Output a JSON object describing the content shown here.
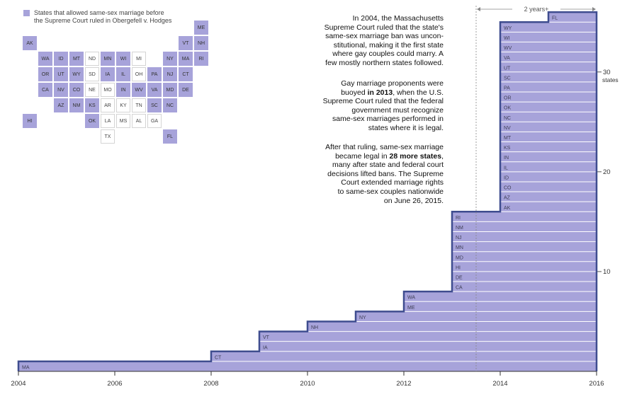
{
  "legend": {
    "line1": "States that allowed same-sex marriage before",
    "line2": "the Supreme Court ruled in Obergefell v. Hodges"
  },
  "colors": {
    "fill": "#a7a3da",
    "line": "#3f4d8f",
    "divider": "#ffffff",
    "text": "#222222"
  },
  "map": {
    "rows": [
      [
        {
          "s": "ME",
          "c": 11,
          "y": 1
        }
      ],
      [
        {
          "s": "AK",
          "c": 0,
          "y": 1
        },
        {
          "s": "VT",
          "c": 10,
          "y": 1
        },
        {
          "s": "NH",
          "c": 11,
          "y": 1
        }
      ],
      [
        {
          "s": "WA",
          "c": 1,
          "y": 1
        },
        {
          "s": "ID",
          "c": 2,
          "y": 1
        },
        {
          "s": "MT",
          "c": 3,
          "y": 1
        },
        {
          "s": "ND",
          "c": 4,
          "y": 0
        },
        {
          "s": "MN",
          "c": 5,
          "y": 1
        },
        {
          "s": "WI",
          "c": 6,
          "y": 1
        },
        {
          "s": "MI",
          "c": 7,
          "y": 0
        },
        {
          "s": "NY",
          "c": 9,
          "y": 1
        },
        {
          "s": "MA",
          "c": 10,
          "y": 1
        },
        {
          "s": "RI",
          "c": 11,
          "y": 1
        }
      ],
      [
        {
          "s": "OR",
          "c": 1,
          "y": 1
        },
        {
          "s": "UT",
          "c": 2,
          "y": 1
        },
        {
          "s": "WY",
          "c": 3,
          "y": 1
        },
        {
          "s": "SD",
          "c": 4,
          "y": 0
        },
        {
          "s": "IA",
          "c": 5,
          "y": 1
        },
        {
          "s": "IL",
          "c": 6,
          "y": 1
        },
        {
          "s": "OH",
          "c": 7,
          "y": 0
        },
        {
          "s": "PA",
          "c": 8,
          "y": 1
        },
        {
          "s": "NJ",
          "c": 9,
          "y": 1
        },
        {
          "s": "CT",
          "c": 10,
          "y": 1
        }
      ],
      [
        {
          "s": "CA",
          "c": 1,
          "y": 1
        },
        {
          "s": "NV",
          "c": 2,
          "y": 1
        },
        {
          "s": "CO",
          "c": 3,
          "y": 1
        },
        {
          "s": "NE",
          "c": 4,
          "y": 0
        },
        {
          "s": "MO",
          "c": 5,
          "y": 0
        },
        {
          "s": "IN",
          "c": 6,
          "y": 1
        },
        {
          "s": "WV",
          "c": 7,
          "y": 1
        },
        {
          "s": "VA",
          "c": 8,
          "y": 1
        },
        {
          "s": "MD",
          "c": 9,
          "y": 1
        },
        {
          "s": "DE",
          "c": 10,
          "y": 1
        }
      ],
      [
        {
          "s": "AZ",
          "c": 2,
          "y": 1
        },
        {
          "s": "NM",
          "c": 3,
          "y": 1
        },
        {
          "s": "KS",
          "c": 4,
          "y": 1
        },
        {
          "s": "AR",
          "c": 5,
          "y": 0
        },
        {
          "s": "KY",
          "c": 6,
          "y": 0
        },
        {
          "s": "TN",
          "c": 7,
          "y": 0
        },
        {
          "s": "SC",
          "c": 8,
          "y": 1
        },
        {
          "s": "NC",
          "c": 9,
          "y": 1
        }
      ],
      [
        {
          "s": "HI",
          "c": 0,
          "y": 1
        },
        {
          "s": "OK",
          "c": 4,
          "y": 1
        },
        {
          "s": "LA",
          "c": 5,
          "y": 0
        },
        {
          "s": "MS",
          "c": 6,
          "y": 0
        },
        {
          "s": "AL",
          "c": 7,
          "y": 0
        },
        {
          "s": "GA",
          "c": 8,
          "y": 0
        }
      ],
      [
        {
          "s": "TX",
          "c": 5,
          "y": 0
        },
        {
          "s": "FL",
          "c": 9,
          "y": 1
        }
      ]
    ]
  },
  "annotations": {
    "p1": [
      "In 2004, the Massachusetts",
      "Supreme Court ruled that the state's",
      "same-sex marriage ban was uncon-",
      "stitutional, making it the first state",
      "where gay couples could marry. A",
      "few mostly northern states followed."
    ],
    "p2_pre": [
      "Gay marriage proponents were"
    ],
    "p2_mid_a": "buoyed ",
    "p2_bold": "in 2013",
    "p2_mid_b": ", when the U.S.",
    "p2_post": [
      "Supreme Court ruled that the federal",
      "government must recognize",
      "same-sex marriages performed in",
      "states where it is legal."
    ],
    "p3_pre": [
      "After that ruling, same-sex marriage"
    ],
    "p3_mid_a": "became legal in ",
    "p3_bold": "28 more states",
    "p3_mid_b": ",",
    "p3_post": [
      "many after state and federal court",
      "decisions lifted bans. The Supreme",
      "Court extended marriage rights",
      "to same-sex couples nationwide",
      "on June 26, 2015."
    ]
  },
  "chart_data": {
    "type": "area",
    "xlim": [
      2004,
      2016
    ],
    "ylim": [
      0,
      37
    ],
    "x_ticks": [
      2004,
      2006,
      2008,
      2010,
      2012,
      2014,
      2016
    ],
    "y_ticks": [
      10,
      20,
      30
    ],
    "y_unit": "states",
    "bracket_label": "2 years+",
    "bracket_from": 2013.5,
    "bracket_to": 2016,
    "steps": [
      {
        "x": 2004,
        "states": [
          "MA"
        ]
      },
      {
        "x": 2008,
        "states": [
          "CT"
        ]
      },
      {
        "x": 2009,
        "states": [
          "IA",
          "VT"
        ]
      },
      {
        "x": 2010,
        "states": [
          "NH"
        ]
      },
      {
        "x": 2011,
        "states": [
          "NY"
        ]
      },
      {
        "x": 2012,
        "states": [
          "ME",
          "WA"
        ]
      },
      {
        "x": 2013,
        "states": [
          "CA",
          "DE",
          "HI",
          "MD",
          "MN",
          "NJ",
          "NM",
          "RI"
        ]
      },
      {
        "x": 2014,
        "states": [
          "AK",
          "AZ",
          "CO",
          "ID",
          "IL",
          "IN",
          "KS",
          "MT",
          "NV",
          "NC",
          "OK",
          "OR",
          "PA",
          "SC",
          "UT",
          "VA",
          "WV",
          "WI",
          "WY"
        ]
      },
      {
        "x": 2015,
        "states": [
          "FL"
        ]
      }
    ],
    "end_x": 2016
  }
}
